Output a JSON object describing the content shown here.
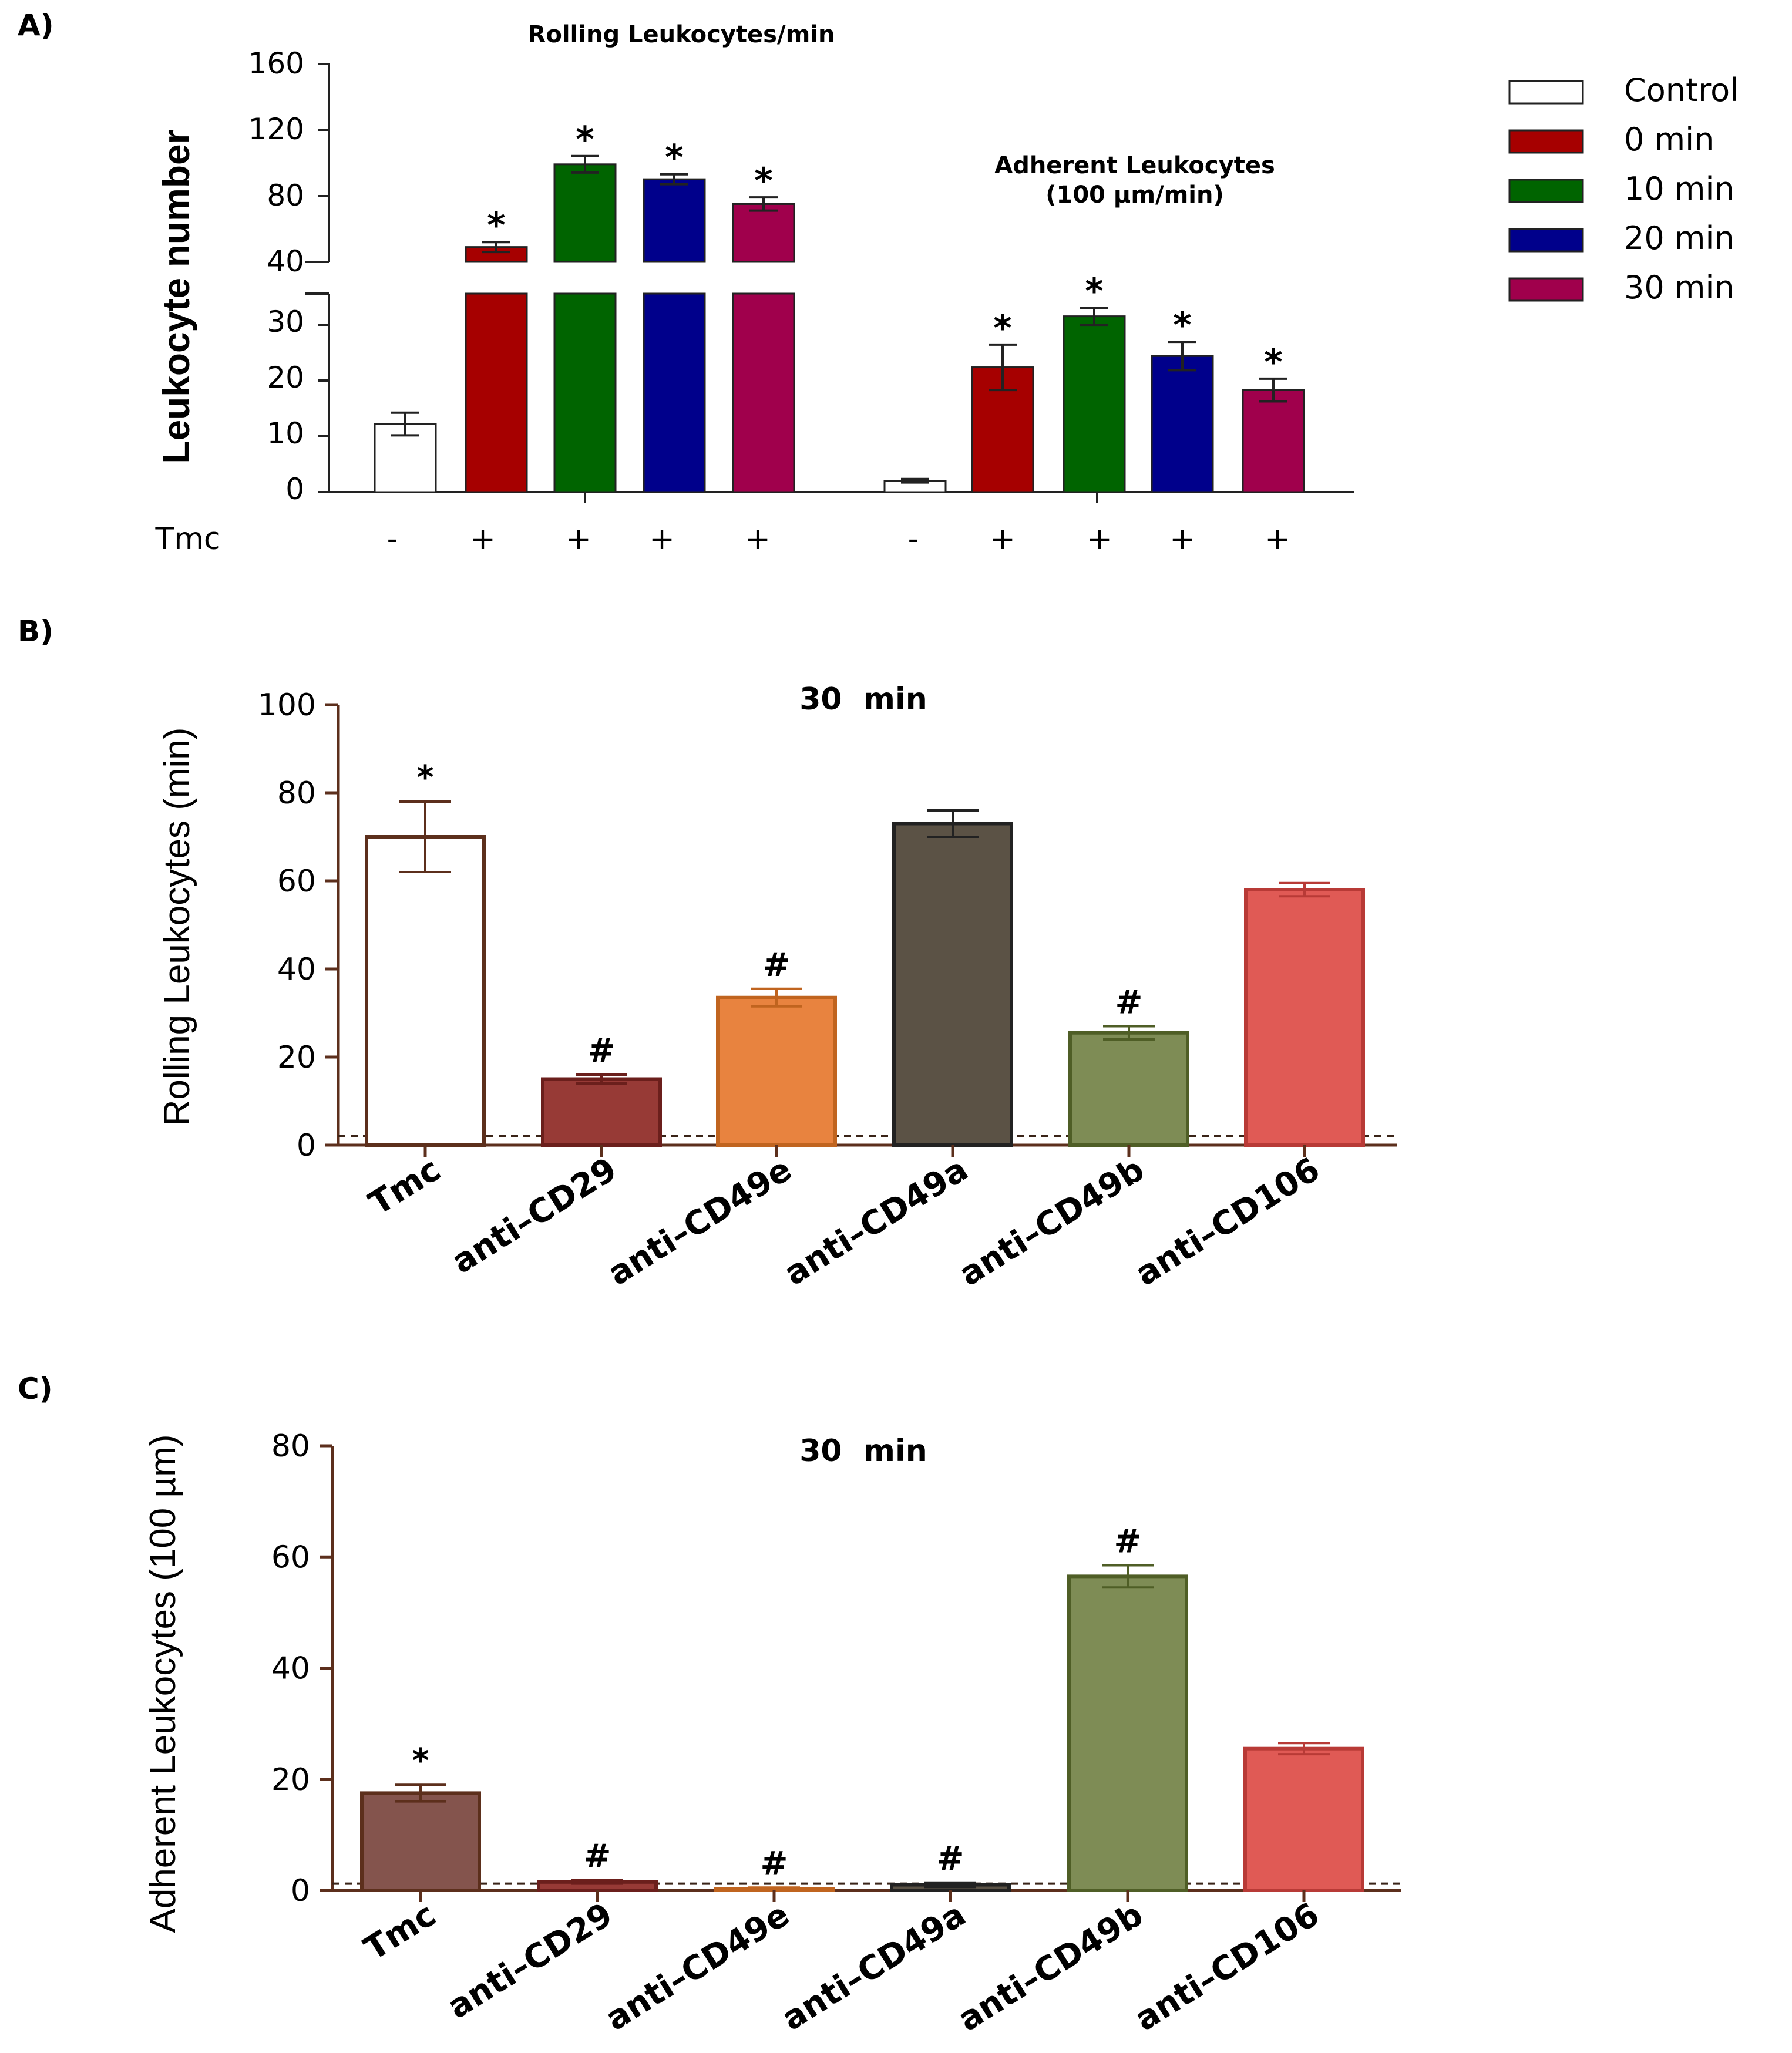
{
  "chart_data": [
    {
      "panel": "A)",
      "type": "bar",
      "ylabel": "Leukocyte number",
      "y_break": [
        35,
        40
      ],
      "lower_ylim": [
        0,
        35
      ],
      "upper_ylim": [
        40,
        160
      ],
      "lower_ticks": [
        "0",
        "10",
        "20",
        "30"
      ],
      "upper_ticks": [
        "40",
        "80",
        "120",
        "160"
      ],
      "row_label": "Tmc",
      "legend": [
        {
          "label": "Control",
          "color": "#ffffff"
        },
        {
          "label": "0 min",
          "color": "#a60000"
        },
        {
          "label": "10 min",
          "color": "#006400"
        },
        {
          "label": "20 min",
          "color": "#00008b"
        },
        {
          "label": "30 min",
          "color": "#a0004c"
        }
      ],
      "groups": [
        {
          "title": "Rolling Leukocytes/min",
          "subtitle": "",
          "tmc": [
            "-",
            "+",
            "+",
            "+",
            "+"
          ],
          "values": [
            12,
            49,
            99,
            90,
            75
          ],
          "errors": [
            2,
            3,
            5,
            3,
            4
          ],
          "marks": [
            "",
            "*",
            "*",
            "*",
            "*"
          ]
        },
        {
          "title": "Adherent Leukocytes",
          "subtitle": "(100 µm/min)",
          "tmc": [
            "-",
            "+",
            "+",
            "+",
            "+"
          ],
          "values": [
            2,
            22,
            31,
            24,
            18
          ],
          "errors": [
            0.3,
            4,
            1.5,
            2.5,
            2
          ],
          "marks": [
            "",
            "*",
            "*",
            "*",
            "*"
          ]
        }
      ]
    },
    {
      "panel": "B)",
      "type": "bar",
      "title": "30  min",
      "ylabel": "Rolling Leukocytes (min)",
      "ylim": [
        0,
        100
      ],
      "yticks": [
        "0",
        "20",
        "40",
        "60",
        "80",
        "100"
      ],
      "baseline": 2,
      "categories": [
        "Tmc",
        "anti–CD29",
        "anti–CD49e",
        "anti–CD49a",
        "anti–CD49b",
        "anti–CD106"
      ],
      "values": [
        70,
        15,
        33.5,
        73,
        25.5,
        58
      ],
      "errors": [
        8,
        1,
        2,
        3,
        1.5,
        1.5
      ],
      "marks": [
        "*",
        "#",
        "#",
        "",
        "#",
        ""
      ],
      "fills": [
        "#ffffff",
        "#973a36",
        "#e8833f",
        "#5b5245",
        "#7e8c55",
        "#e05a55"
      ],
      "strokes": [
        "#5c2f1c",
        "#6b1f1c",
        "#c0641f",
        "#222222",
        "#4f5e26",
        "#b83a36"
      ]
    },
    {
      "panel": "C)",
      "type": "bar",
      "title": "30  min",
      "ylabel": "Adherent Leukocytes (100 µm)",
      "ylim": [
        0,
        80
      ],
      "yticks": [
        "0",
        "20",
        "40",
        "60",
        "80"
      ],
      "baseline": 1.2,
      "categories": [
        "Tmc",
        "anti–CD29",
        "anti–CD49e",
        "anti–CD49a",
        "anti–CD49b",
        "anti–CD106"
      ],
      "values": [
        17.5,
        1.5,
        0.3,
        1,
        56.5,
        25.5
      ],
      "errors": [
        1.5,
        0.3,
        0.2,
        0.4,
        2,
        1
      ],
      "marks": [
        "*",
        "#",
        "#",
        "#",
        "#",
        ""
      ],
      "fills": [
        "#84544d",
        "#973a36",
        "#e8833f",
        "#5b5245",
        "#7e8c55",
        "#e05a55"
      ],
      "strokes": [
        "#5c2f1c",
        "#6b1f1c",
        "#c0641f",
        "#222222",
        "#4f5e26",
        "#b83a36"
      ]
    }
  ]
}
